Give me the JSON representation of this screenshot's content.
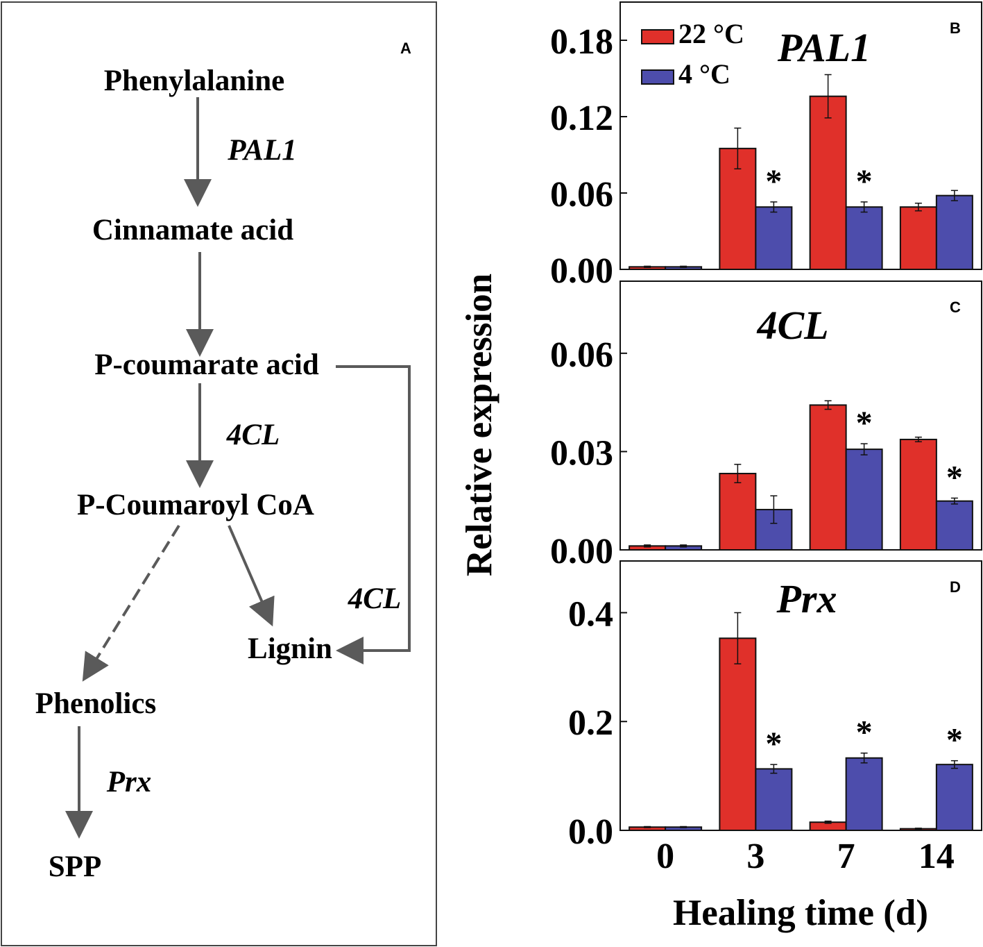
{
  "pathway": {
    "panel_label": "A",
    "nodes": {
      "phenylalanine": "Phenylalanine",
      "cinnamate": "Cinnamate acid",
      "p_coumarate": "P-coumarate acid",
      "p_coumaroyl_coa": "P-Coumaroyl CoA",
      "lignin": "Lignin",
      "phenolics": "Phenolics",
      "spp": "SPP"
    },
    "enzymes": {
      "pal1": "PAL1",
      "fourcl_main": "4CL",
      "fourcl_side": "4CL",
      "prx": "Prx"
    }
  },
  "figure_labels": {
    "y_axis": "Relative expression",
    "x_axis": "Healing time (d)",
    "significance_marker": "*"
  },
  "legend": [
    {
      "label": "22 °C",
      "color": "#e0302a"
    },
    {
      "label": "4 °C",
      "color": "#4d4dac"
    }
  ],
  "chart_data": [
    {
      "type": "bar",
      "panel": "B",
      "title": "PAL1",
      "categories": [
        "0",
        "3",
        "7",
        "14"
      ],
      "ylim": [
        0,
        0.21
      ],
      "yticks": [
        "0.00",
        "0.06",
        "0.12",
        "0.18"
      ],
      "series": [
        {
          "name": "22 °C",
          "values": [
            0.002,
            0.095,
            0.136,
            0.049
          ],
          "errors": [
            0.0005,
            0.016,
            0.017,
            0.003
          ]
        },
        {
          "name": "4 °C",
          "values": [
            0.002,
            0.049,
            0.049,
            0.058
          ],
          "errors": [
            0.0005,
            0.004,
            0.004,
            0.004
          ]
        }
      ],
      "significant": [
        false,
        true,
        true,
        false
      ]
    },
    {
      "type": "bar",
      "panel": "C",
      "title": "4CL",
      "categories": [
        "0",
        "3",
        "7",
        "14"
      ],
      "ylim": [
        0,
        0.082
      ],
      "yticks": [
        "0.00",
        "0.03",
        "0.06"
      ],
      "series": [
        {
          "name": "22 °C",
          "values": [
            0.0012,
            0.0233,
            0.0442,
            0.0337
          ],
          "errors": [
            0.0003,
            0.0028,
            0.0013,
            0.0007
          ]
        },
        {
          "name": "4 °C",
          "values": [
            0.0012,
            0.0123,
            0.0307,
            0.0149
          ],
          "errors": [
            0.0003,
            0.0042,
            0.0017,
            0.0009
          ]
        }
      ],
      "significant": [
        false,
        false,
        true,
        true
      ]
    },
    {
      "type": "bar",
      "panel": "D",
      "title": "Prx",
      "categories": [
        "0",
        "3",
        "7",
        "14"
      ],
      "ylim": [
        0,
        0.495
      ],
      "yticks": [
        "0.0",
        "0.2",
        "0.4"
      ],
      "series": [
        {
          "name": "22 °C",
          "values": [
            0.006,
            0.353,
            0.015,
            0.003
          ],
          "errors": [
            0.001,
            0.047,
            0.002,
            0.001
          ]
        },
        {
          "name": "4 °C",
          "values": [
            0.006,
            0.113,
            0.133,
            0.121
          ],
          "errors": [
            0.001,
            0.008,
            0.009,
            0.007
          ]
        }
      ],
      "significant": [
        false,
        true,
        true,
        true
      ]
    }
  ]
}
